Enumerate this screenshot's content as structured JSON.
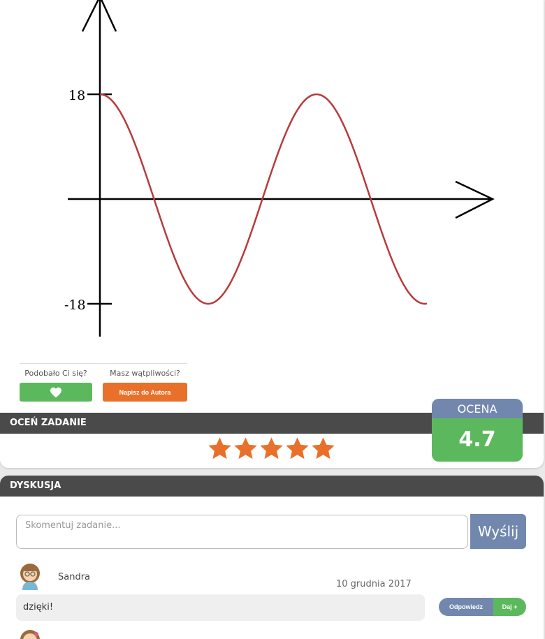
{
  "graph": {
    "y_tick_top": "18",
    "y_tick_bottom": "-18",
    "curve_color": "#b83b3b"
  },
  "feedback": {
    "like_question": "Podobało Ci się?",
    "doubt_question": "Masz wątpliwości?",
    "author_button": "Napisz do Autora",
    "like_color": "#5cb85c",
    "author_color": "#e8702a"
  },
  "rate": {
    "header": "OCEŃ ZADANIE",
    "stars": 5,
    "star_color": "#e8702a"
  },
  "rating": {
    "label": "OCENA",
    "value": "4.7"
  },
  "discussion": {
    "header": "DYSKUSJA",
    "placeholder": "Skomentuj zadanie...",
    "send_label": "Wyślij",
    "comments": [
      {
        "user": "Sandra",
        "date": "10 grudnia 2017",
        "text": "dzięki!",
        "reply_label": "Odpowiedz",
        "plus_label": "Daj +"
      }
    ]
  }
}
